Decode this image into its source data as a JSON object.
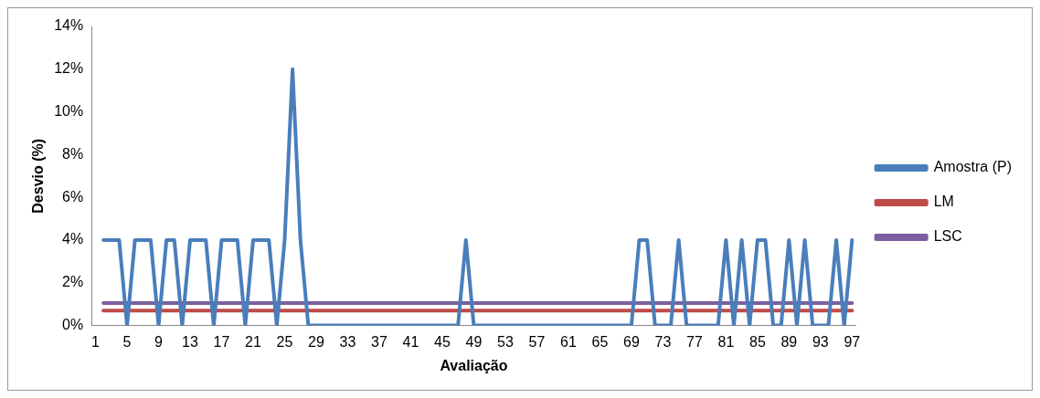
{
  "chart_data": {
    "type": "line",
    "xlabel": "Avaliação",
    "ylabel": "Desvio (%)",
    "categories": [
      "1",
      null,
      null,
      null,
      "5",
      null,
      null,
      null,
      "9",
      null,
      null,
      null,
      "13",
      null,
      null,
      null,
      "17",
      null,
      null,
      null,
      "21",
      null,
      null,
      null,
      "25",
      null,
      null,
      null,
      "29",
      null,
      null,
      null,
      "33",
      null,
      null,
      null,
      "37",
      null,
      null,
      null,
      "41",
      null,
      null,
      null,
      "45",
      null,
      null,
      null,
      "49",
      null,
      null,
      null,
      "53",
      null,
      null,
      null,
      "57",
      null,
      null,
      null,
      "61",
      null,
      null,
      null,
      "65",
      null,
      null,
      null,
      "69",
      null,
      null,
      null,
      "73",
      null,
      null,
      null,
      "77",
      null,
      null,
      null,
      "81",
      null,
      null,
      null,
      "85",
      null,
      null,
      null,
      "89",
      null,
      null,
      null,
      "93",
      null,
      null,
      null,
      "97"
    ],
    "series": [
      {
        "name": "Amostra (P)",
        "color": "#4a7ebb",
        "values": [
          null,
          4,
          4,
          4,
          0,
          4,
          4,
          4,
          0,
          4,
          4,
          0,
          4,
          4,
          4,
          0,
          4,
          4,
          4,
          0,
          4,
          4,
          4,
          0,
          4,
          12,
          4,
          0,
          0,
          0,
          0,
          0,
          0,
          0,
          0,
          0,
          0,
          0,
          0,
          0,
          0,
          0,
          0,
          0,
          0,
          0,
          0,
          4,
          0,
          0,
          0,
          0,
          0,
          0,
          0,
          0,
          0,
          0,
          0,
          0,
          0,
          0,
          0,
          0,
          0,
          0,
          0,
          0,
          0,
          4,
          4,
          0,
          0,
          0,
          4,
          0,
          0,
          0,
          0,
          0,
          4,
          0,
          4,
          0,
          4,
          4,
          0,
          0,
          4,
          0,
          4,
          0,
          0,
          0,
          4,
          0,
          4
        ]
      },
      {
        "name": "LM",
        "color": "#be4b48",
        "values": [
          null,
          0.7,
          0.7,
          0.7,
          0.7,
          0.7,
          0.7,
          0.7,
          0.7,
          0.7,
          0.7,
          0.7,
          0.7,
          0.7,
          0.7,
          0.7,
          0.7,
          0.7,
          0.7,
          0.7,
          0.7,
          0.7,
          0.7,
          0.7,
          0.7,
          0.7,
          0.7,
          0.7,
          0.7,
          0.7,
          0.7,
          0.7,
          0.7,
          0.7,
          0.7,
          0.7,
          0.7,
          0.7,
          0.7,
          0.7,
          0.7,
          0.7,
          0.7,
          0.7,
          0.7,
          0.7,
          0.7,
          0.7,
          0.7,
          0.7,
          0.7,
          0.7,
          0.7,
          0.7,
          0.7,
          0.7,
          0.7,
          0.7,
          0.7,
          0.7,
          0.7,
          0.7,
          0.7,
          0.7,
          0.7,
          0.7,
          0.7,
          0.7,
          0.7,
          0.7,
          0.7,
          0.7,
          0.7,
          0.7,
          0.7,
          0.7,
          0.7,
          0.7,
          0.7,
          0.7,
          0.7,
          0.7,
          0.7,
          0.7,
          0.7,
          0.7,
          0.7,
          0.7,
          0.7,
          0.7,
          0.7,
          0.7,
          0.7,
          0.7,
          0.7,
          0.7,
          0.7
        ]
      },
      {
        "name": "LSC",
        "color": "#7d5fa0",
        "values": [
          null,
          1.05,
          1.05,
          1.05,
          1.05,
          1.05,
          1.05,
          1.05,
          1.05,
          1.05,
          1.05,
          1.05,
          1.05,
          1.05,
          1.05,
          1.05,
          1.05,
          1.05,
          1.05,
          1.05,
          1.05,
          1.05,
          1.05,
          1.05,
          1.05,
          1.05,
          1.05,
          1.05,
          1.05,
          1.05,
          1.05,
          1.05,
          1.05,
          1.05,
          1.05,
          1.05,
          1.05,
          1.05,
          1.05,
          1.05,
          1.05,
          1.05,
          1.05,
          1.05,
          1.05,
          1.05,
          1.05,
          1.05,
          1.05,
          1.05,
          1.05,
          1.05,
          1.05,
          1.05,
          1.05,
          1.05,
          1.05,
          1.05,
          1.05,
          1.05,
          1.05,
          1.05,
          1.05,
          1.05,
          1.05,
          1.05,
          1.05,
          1.05,
          1.05,
          1.05,
          1.05,
          1.05,
          1.05,
          1.05,
          1.05,
          1.05,
          1.05,
          1.05,
          1.05,
          1.05,
          1.05,
          1.05,
          1.05,
          1.05,
          1.05,
          1.05,
          1.05,
          1.05,
          1.05,
          1.05,
          1.05,
          1.05,
          1.05,
          1.05,
          1.05,
          1.05,
          1.05
        ]
      }
    ],
    "ylim": [
      0,
      14
    ],
    "yticks": [
      {
        "value": 0,
        "label": "0%"
      },
      {
        "value": 2,
        "label": "2%"
      },
      {
        "value": 4,
        "label": "4%"
      },
      {
        "value": 6,
        "label": "6%"
      },
      {
        "value": 8,
        "label": "8%"
      },
      {
        "value": 10,
        "label": "10%"
      },
      {
        "value": 12,
        "label": "12%"
      },
      {
        "value": 14,
        "label": "14%"
      }
    ],
    "legend": "right",
    "marker": "none",
    "line_style": "solid"
  }
}
